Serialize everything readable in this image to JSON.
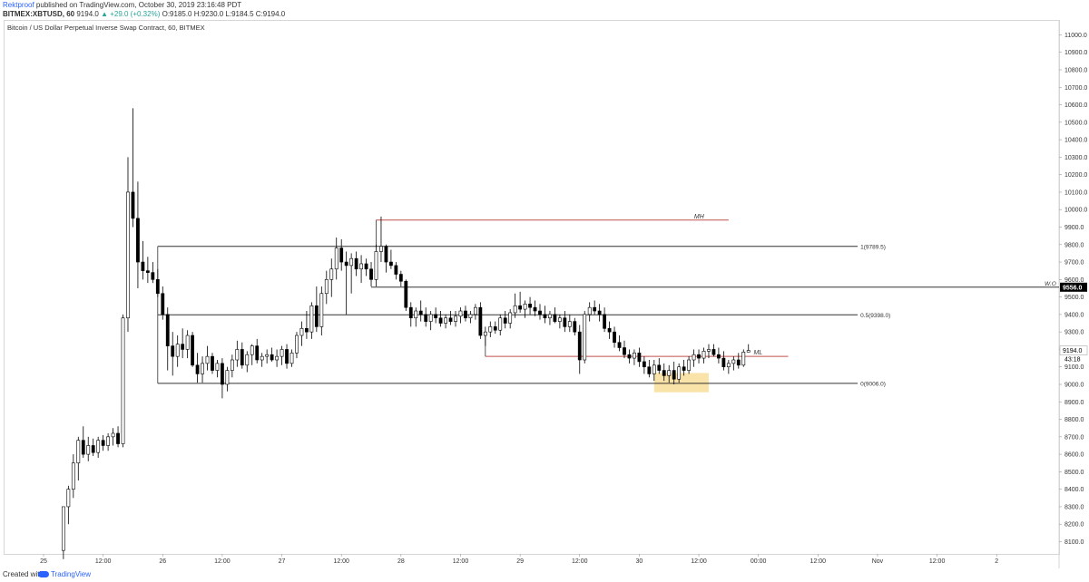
{
  "header": {
    "author": "Rektproof",
    "published": "published on TradingView.com, October 30, 2019 23:16:48 PDT",
    "symbol": "BITMEX:XBTUSD, 60",
    "last": "9194.0",
    "change": "▲ +29.0 (+0.32%)",
    "ohlc": "O:9185.0 H:9230.0 L:9184.5 C:9194.0"
  },
  "chart_title": "Bitcoin / US Dollar Perpetual Inverse Swap Contract, 60, BITMEX",
  "footer": {
    "created_with": "Created with",
    "brand": "TradingView"
  },
  "chart_data": {
    "type": "candlestick",
    "y_ticks": [
      8100,
      8200,
      8300,
      8400,
      8500,
      8600,
      8700,
      8800,
      8900,
      9000,
      9100,
      9200,
      9300,
      9400,
      9500,
      9600,
      9700,
      9800,
      9900,
      10000,
      10100,
      10200,
      10300,
      10400,
      10500,
      10600,
      10700,
      10800,
      10900,
      11000
    ],
    "y_tick_labels": [
      "8100.0",
      "8200.0",
      "8300.0",
      "8400.0",
      "8500.0",
      "8600.0",
      "8700.0",
      "8800.0",
      "8900.0",
      "9000.0",
      "9100.0",
      "9200.0",
      "9300.0",
      "9400.0",
      "9500.0",
      "9600.0",
      "9700.0",
      "9800.0",
      "9900.0",
      "10000.0",
      "10100.0",
      "10200.0",
      "10300.0",
      "10400.0",
      "10500.0",
      "10600.0",
      "10700.0",
      "10800.0",
      "10900.0",
      "11000.0"
    ],
    "ylim": [
      8030,
      11080
    ],
    "x_ticks": [
      {
        "label": "25",
        "hour": 0
      },
      {
        "label": "12:00",
        "hour": 12
      },
      {
        "label": "26",
        "hour": 24
      },
      {
        "label": "12:00",
        "hour": 36
      },
      {
        "label": "27",
        "hour": 48
      },
      {
        "label": "12:00",
        "hour": 60
      },
      {
        "label": "28",
        "hour": 72
      },
      {
        "label": "12:00",
        "hour": 84
      },
      {
        "label": "29",
        "hour": 96
      },
      {
        "label": "12:00",
        "hour": 108
      },
      {
        "label": "30",
        "hour": 120
      },
      {
        "label": "12:00",
        "hour": 132
      },
      {
        "label": "00:00",
        "hour": 144
      },
      {
        "label": "12:00",
        "hour": 156
      },
      {
        "label": "Nov",
        "hour": 168
      },
      {
        "label": "12:00",
        "hour": 180
      },
      {
        "label": "2",
        "hour": 192
      }
    ],
    "price_label": {
      "value": 9194.0,
      "text": "9194.0",
      "countdown": "43:18"
    },
    "wo_label": {
      "value": 9556.0,
      "text": "9556.0",
      "tag": "W.O"
    },
    "levels": [
      {
        "label": "1(9789.5)",
        "value": 9789.5,
        "x_from_hour": 23,
        "x_to_hour": 164,
        "color": "#333333"
      },
      {
        "label": "0.5(9398.0)",
        "value": 9398.0,
        "x_from_hour": 23,
        "x_to_hour": 164,
        "color": "#333333"
      },
      {
        "label": "0(9006.0)",
        "value": 9006.0,
        "x_from_hour": 23,
        "x_to_hour": 164,
        "color": "#333333"
      },
      {
        "label": "",
        "value": 9556.0,
        "x_from_hour": 66,
        "x_to_hour": 205,
        "color": "#333333"
      }
    ],
    "ray_lines": [
      {
        "label": "MH",
        "value": 9940,
        "x_from_hour": 67,
        "x_to_hour": 138,
        "color": "#c0504d"
      },
      {
        "label": "ML",
        "value": 9160,
        "x_from_hour": 89,
        "x_to_hour": 150,
        "color": "#c0504d"
      }
    ],
    "highlight_box": {
      "from_hour": 123,
      "to_hour": 134,
      "low": 8955,
      "high": 9065,
      "color": "#f8d98b"
    },
    "candles": [
      [
        4,
        8050,
        8300,
        8000,
        8300
      ],
      [
        5,
        8300,
        8420,
        8200,
        8400
      ],
      [
        6,
        8400,
        8600,
        8350,
        8550
      ],
      [
        7,
        8550,
        8700,
        8450,
        8680
      ],
      [
        8,
        8680,
        8760,
        8580,
        8600
      ],
      [
        9,
        8600,
        8700,
        8560,
        8650
      ],
      [
        10,
        8650,
        8690,
        8590,
        8610
      ],
      [
        11,
        8610,
        8700,
        8580,
        8680
      ],
      [
        12,
        8680,
        8710,
        8620,
        8650
      ],
      [
        13,
        8650,
        8720,
        8620,
        8700
      ],
      [
        14,
        8700,
        8750,
        8650,
        8720
      ],
      [
        15,
        8720,
        8760,
        8640,
        8660
      ],
      [
        16,
        8660,
        9400,
        8640,
        9380
      ],
      [
        17,
        9380,
        10300,
        9300,
        10100
      ],
      [
        18,
        10100,
        10580,
        9900,
        9950
      ],
      [
        19,
        9950,
        10160,
        9550,
        9700
      ],
      [
        20,
        9700,
        9820,
        9600,
        9650
      ],
      [
        21,
        9650,
        9730,
        9580,
        9640
      ],
      [
        22,
        9640,
        9700,
        9580,
        9600
      ],
      [
        23,
        9600,
        9660,
        9500,
        9520
      ],
      [
        24,
        9520,
        9560,
        9370,
        9400
      ],
      [
        25,
        9400,
        9440,
        9080,
        9220
      ],
      [
        26,
        9220,
        9300,
        9050,
        9160
      ],
      [
        27,
        9160,
        9280,
        9100,
        9230
      ],
      [
        28,
        9230,
        9320,
        9150,
        9200
      ],
      [
        29,
        9200,
        9310,
        9150,
        9280
      ],
      [
        30,
        9280,
        9300,
        9100,
        9110
      ],
      [
        31,
        9110,
        9180,
        9010,
        9060
      ],
      [
        32,
        9060,
        9160,
        9010,
        9120
      ],
      [
        33,
        9120,
        9220,
        9080,
        9160
      ],
      [
        34,
        9160,
        9180,
        9060,
        9080
      ],
      [
        35,
        9080,
        9140,
        9040,
        9120
      ],
      [
        36,
        9120,
        9150,
        8920,
        9000
      ],
      [
        37,
        9000,
        9100,
        8960,
        9080
      ],
      [
        38,
        9080,
        9170,
        9040,
        9140
      ],
      [
        39,
        9140,
        9250,
        9100,
        9200
      ],
      [
        40,
        9200,
        9240,
        9090,
        9110
      ],
      [
        41,
        9110,
        9190,
        9070,
        9170
      ],
      [
        42,
        9170,
        9230,
        9110,
        9220
      ],
      [
        43,
        9220,
        9260,
        9120,
        9140
      ],
      [
        44,
        9140,
        9180,
        9100,
        9160
      ],
      [
        45,
        9160,
        9200,
        9120,
        9170
      ],
      [
        46,
        9170,
        9210,
        9130,
        9140
      ],
      [
        47,
        9140,
        9200,
        9100,
        9160
      ],
      [
        48,
        9160,
        9220,
        9110,
        9200
      ],
      [
        49,
        9200,
        9230,
        9090,
        9120
      ],
      [
        50,
        9120,
        9200,
        9100,
        9180
      ],
      [
        51,
        9180,
        9300,
        9150,
        9280
      ],
      [
        52,
        9280,
        9360,
        9220,
        9320
      ],
      [
        53,
        9320,
        9420,
        9260,
        9300
      ],
      [
        54,
        9300,
        9470,
        9260,
        9450
      ],
      [
        55,
        9450,
        9560,
        9300,
        9330
      ],
      [
        56,
        9330,
        9560,
        9280,
        9520
      ],
      [
        57,
        9520,
        9650,
        9460,
        9600
      ],
      [
        58,
        9600,
        9720,
        9500,
        9660
      ],
      [
        59,
        9660,
        9840,
        9600,
        9780
      ],
      [
        60,
        9780,
        9830,
        9650,
        9700
      ],
      [
        61,
        9700,
        9760,
        9400,
        9680
      ],
      [
        62,
        9680,
        9750,
        9520,
        9720
      ],
      [
        63,
        9720,
        9760,
        9620,
        9660
      ],
      [
        64,
        9660,
        9740,
        9580,
        9690
      ],
      [
        65,
        9690,
        9720,
        9620,
        9660
      ],
      [
        66,
        9660,
        9700,
        9560,
        9600
      ],
      [
        67,
        9600,
        9800,
        9560,
        9760
      ],
      [
        68,
        9760,
        9960,
        9700,
        9790
      ],
      [
        69,
        9790,
        9800,
        9640,
        9700
      ],
      [
        70,
        9700,
        9770,
        9660,
        9680
      ],
      [
        71,
        9680,
        9700,
        9600,
        9630
      ],
      [
        72,
        9630,
        9650,
        9560,
        9590
      ],
      [
        73,
        9590,
        9600,
        9420,
        9440
      ],
      [
        74,
        9440,
        9470,
        9330,
        9380
      ],
      [
        75,
        9380,
        9440,
        9330,
        9420
      ],
      [
        76,
        9420,
        9480,
        9360,
        9400
      ],
      [
        77,
        9400,
        9440,
        9330,
        9360
      ],
      [
        78,
        9360,
        9420,
        9310,
        9400
      ],
      [
        79,
        9400,
        9440,
        9350,
        9380
      ],
      [
        80,
        9380,
        9420,
        9330,
        9350
      ],
      [
        81,
        9350,
        9400,
        9320,
        9380
      ],
      [
        82,
        9380,
        9420,
        9340,
        9360
      ],
      [
        83,
        9360,
        9420,
        9330,
        9390
      ],
      [
        84,
        9390,
        9440,
        9350,
        9420
      ],
      [
        85,
        9420,
        9450,
        9360,
        9380
      ],
      [
        86,
        9380,
        9420,
        9350,
        9400
      ],
      [
        87,
        9400,
        9460,
        9370,
        9440
      ],
      [
        88,
        9440,
        9470,
        9260,
        9280
      ],
      [
        89,
        9280,
        9330,
        9220,
        9300
      ],
      [
        90,
        9300,
        9360,
        9270,
        9330
      ],
      [
        91,
        9330,
        9360,
        9290,
        9310
      ],
      [
        92,
        9310,
        9400,
        9280,
        9380
      ],
      [
        93,
        9380,
        9420,
        9320,
        9350
      ],
      [
        94,
        9350,
        9430,
        9320,
        9410
      ],
      [
        95,
        9410,
        9520,
        9380,
        9450
      ],
      [
        96,
        9450,
        9530,
        9410,
        9430
      ],
      [
        97,
        9430,
        9480,
        9380,
        9460
      ],
      [
        98,
        9460,
        9500,
        9400,
        9440
      ],
      [
        99,
        9440,
        9480,
        9390,
        9420
      ],
      [
        100,
        9420,
        9460,
        9370,
        9400
      ],
      [
        101,
        9400,
        9450,
        9350,
        9380
      ],
      [
        102,
        9380,
        9420,
        9340,
        9400
      ],
      [
        103,
        9400,
        9440,
        9350,
        9360
      ],
      [
        104,
        9360,
        9400,
        9320,
        9380
      ],
      [
        105,
        9380,
        9420,
        9300,
        9330
      ],
      [
        106,
        9330,
        9400,
        9300,
        9360
      ],
      [
        107,
        9360,
        9380,
        9280,
        9300
      ],
      [
        108,
        9300,
        9340,
        9060,
        9140
      ],
      [
        109,
        9140,
        9420,
        9120,
        9400
      ],
      [
        110,
        9400,
        9470,
        9360,
        9440
      ],
      [
        111,
        9440,
        9480,
        9400,
        9420
      ],
      [
        112,
        9420,
        9460,
        9360,
        9400
      ],
      [
        113,
        9400,
        9440,
        9300,
        9320
      ],
      [
        114,
        9320,
        9360,
        9260,
        9300
      ],
      [
        115,
        9300,
        9330,
        9210,
        9240
      ],
      [
        116,
        9240,
        9280,
        9190,
        9210
      ],
      [
        117,
        9210,
        9250,
        9150,
        9170
      ],
      [
        118,
        9170,
        9200,
        9120,
        9150
      ],
      [
        119,
        9150,
        9200,
        9110,
        9180
      ],
      [
        120,
        9180,
        9210,
        9100,
        9130
      ],
      [
        121,
        9130,
        9160,
        9060,
        9100
      ],
      [
        122,
        9100,
        9140,
        9040,
        9060
      ],
      [
        123,
        9060,
        9140,
        9020,
        9110
      ],
      [
        124,
        9110,
        9150,
        9060,
        9080
      ],
      [
        125,
        9080,
        9120,
        9020,
        9050
      ],
      [
        126,
        9050,
        9110,
        9010,
        9080
      ],
      [
        127,
        9080,
        9130,
        9000,
        9030
      ],
      [
        128,
        9030,
        9120,
        9010,
        9100
      ],
      [
        129,
        9100,
        9140,
        9050,
        9080
      ],
      [
        130,
        9080,
        9160,
        9060,
        9140
      ],
      [
        131,
        9140,
        9200,
        9100,
        9170
      ],
      [
        132,
        9170,
        9200,
        9120,
        9150
      ],
      [
        133,
        9150,
        9210,
        9120,
        9190
      ],
      [
        134,
        9190,
        9230,
        9150,
        9200
      ],
      [
        135,
        9200,
        9230,
        9160,
        9170
      ],
      [
        136,
        9170,
        9210,
        9120,
        9150
      ],
      [
        137,
        9150,
        9190,
        9080,
        9100
      ],
      [
        138,
        9100,
        9140,
        9060,
        9120
      ],
      [
        139,
        9120,
        9160,
        9080,
        9140
      ],
      [
        140,
        9140,
        9180,
        9090,
        9110
      ],
      [
        141,
        9110,
        9200,
        9100,
        9185
      ],
      [
        142,
        9185,
        9230,
        9184.5,
        9194
      ]
    ]
  }
}
